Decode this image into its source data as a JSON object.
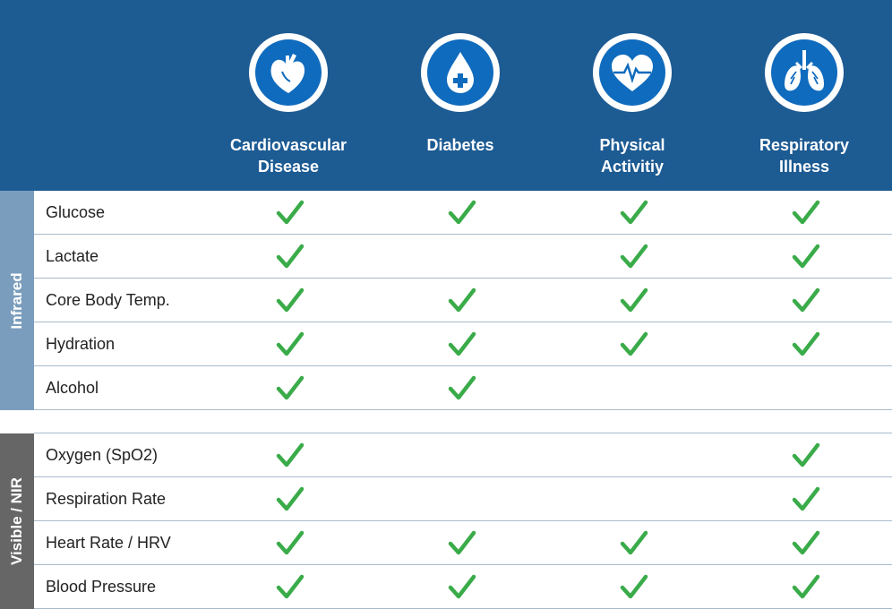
{
  "colors": {
    "header": "#1d5b93",
    "icon": "#0f6bbd",
    "infrared": "#7a9dbd",
    "visible": "#666666",
    "check": "#3aab49"
  },
  "columns": [
    {
      "label": "Cardiovascular\nDisease",
      "icon": "heart-icon"
    },
    {
      "label": "Diabetes",
      "icon": "blood-drop-plus-icon"
    },
    {
      "label": "Physical\nActivitiy",
      "icon": "heart-pulse-icon"
    },
    {
      "label": "Respiratory\nIllness",
      "icon": "lungs-icon"
    }
  ],
  "groups": [
    {
      "label": "Infrared",
      "rows": [
        {
          "label": "Glucose",
          "checks": [
            true,
            true,
            true,
            true
          ]
        },
        {
          "label": "Lactate",
          "checks": [
            true,
            false,
            true,
            true
          ]
        },
        {
          "label": "Core Body Temp.",
          "checks": [
            true,
            true,
            true,
            true
          ]
        },
        {
          "label": "Hydration",
          "checks": [
            true,
            true,
            true,
            true
          ]
        },
        {
          "label": "Alcohol",
          "checks": [
            true,
            true,
            false,
            false
          ]
        }
      ]
    },
    {
      "label": "Visible / NIR",
      "rows": [
        {
          "label": "Oxygen (SpO2)",
          "checks": [
            true,
            false,
            false,
            true
          ]
        },
        {
          "label": "Respiration Rate",
          "checks": [
            true,
            false,
            false,
            true
          ]
        },
        {
          "label": "Heart Rate / HRV",
          "checks": [
            true,
            true,
            true,
            true
          ]
        },
        {
          "label": "Blood Pressure",
          "checks": [
            true,
            true,
            true,
            true
          ]
        }
      ]
    }
  ]
}
